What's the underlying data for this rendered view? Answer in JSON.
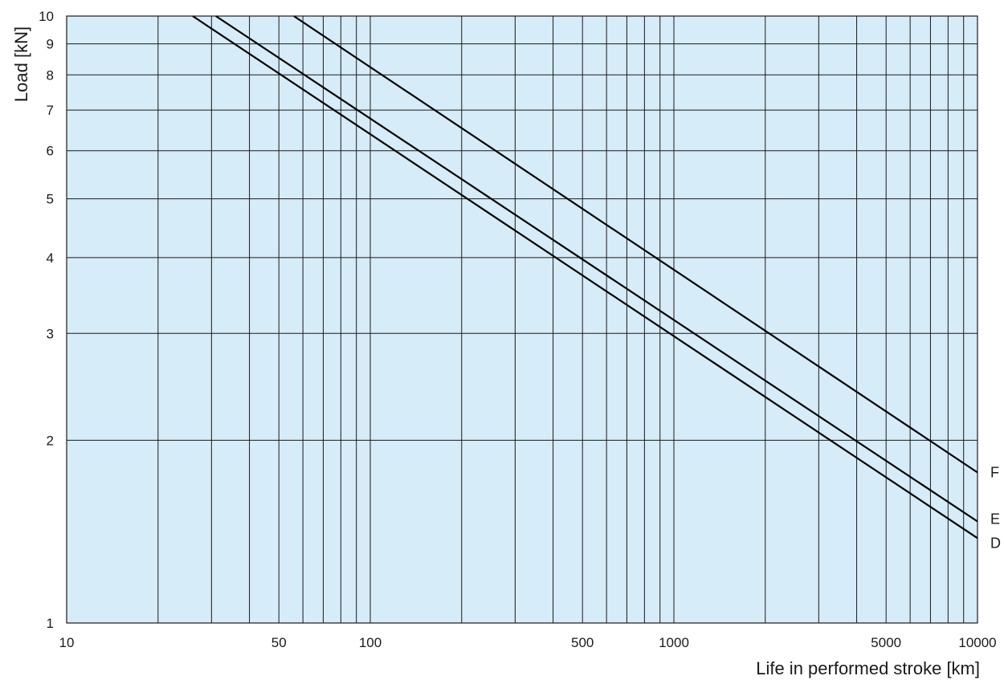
{
  "chart_data": {
    "type": "line",
    "title": "",
    "xlabel": "Life in performed stroke [km]",
    "ylabel": "Load [kN]",
    "x_scale": "log",
    "y_scale": "log",
    "xlim": [
      10,
      10000
    ],
    "ylim": [
      1,
      10
    ],
    "x_tick_labels": [
      {
        "value": 10,
        "label": "10"
      },
      {
        "value": 50,
        "label": "50"
      },
      {
        "value": 100,
        "label": "100"
      },
      {
        "value": 500,
        "label": "500"
      },
      {
        "value": 1000,
        "label": "1000"
      },
      {
        "value": 5000,
        "label": "5000"
      },
      {
        "value": 10000,
        "label": "10000"
      }
    ],
    "x_gridlines": [
      20,
      30,
      40,
      50,
      60,
      70,
      80,
      90,
      100,
      200,
      300,
      400,
      500,
      600,
      700,
      800,
      900,
      1000,
      2000,
      3000,
      4000,
      5000,
      6000,
      7000,
      8000,
      9000
    ],
    "y_ticks": [
      1,
      2,
      3,
      4,
      5,
      6,
      7,
      8,
      9,
      10
    ],
    "y_tick_labels": [
      "1",
      "2",
      "3",
      "4",
      "5",
      "6",
      "7",
      "8",
      "9",
      "10"
    ],
    "grid": true,
    "background_color": "#d6ecf8",
    "line_color": "#000000",
    "series": [
      {
        "name": "F",
        "x": [
          56,
          10000
        ],
        "y": [
          10,
          1.77
        ]
      },
      {
        "name": "E",
        "x": [
          31,
          10000
        ],
        "y": [
          10,
          1.47
        ]
      },
      {
        "name": "D",
        "x": [
          26,
          10000
        ],
        "y": [
          10,
          1.38
        ]
      }
    ]
  }
}
